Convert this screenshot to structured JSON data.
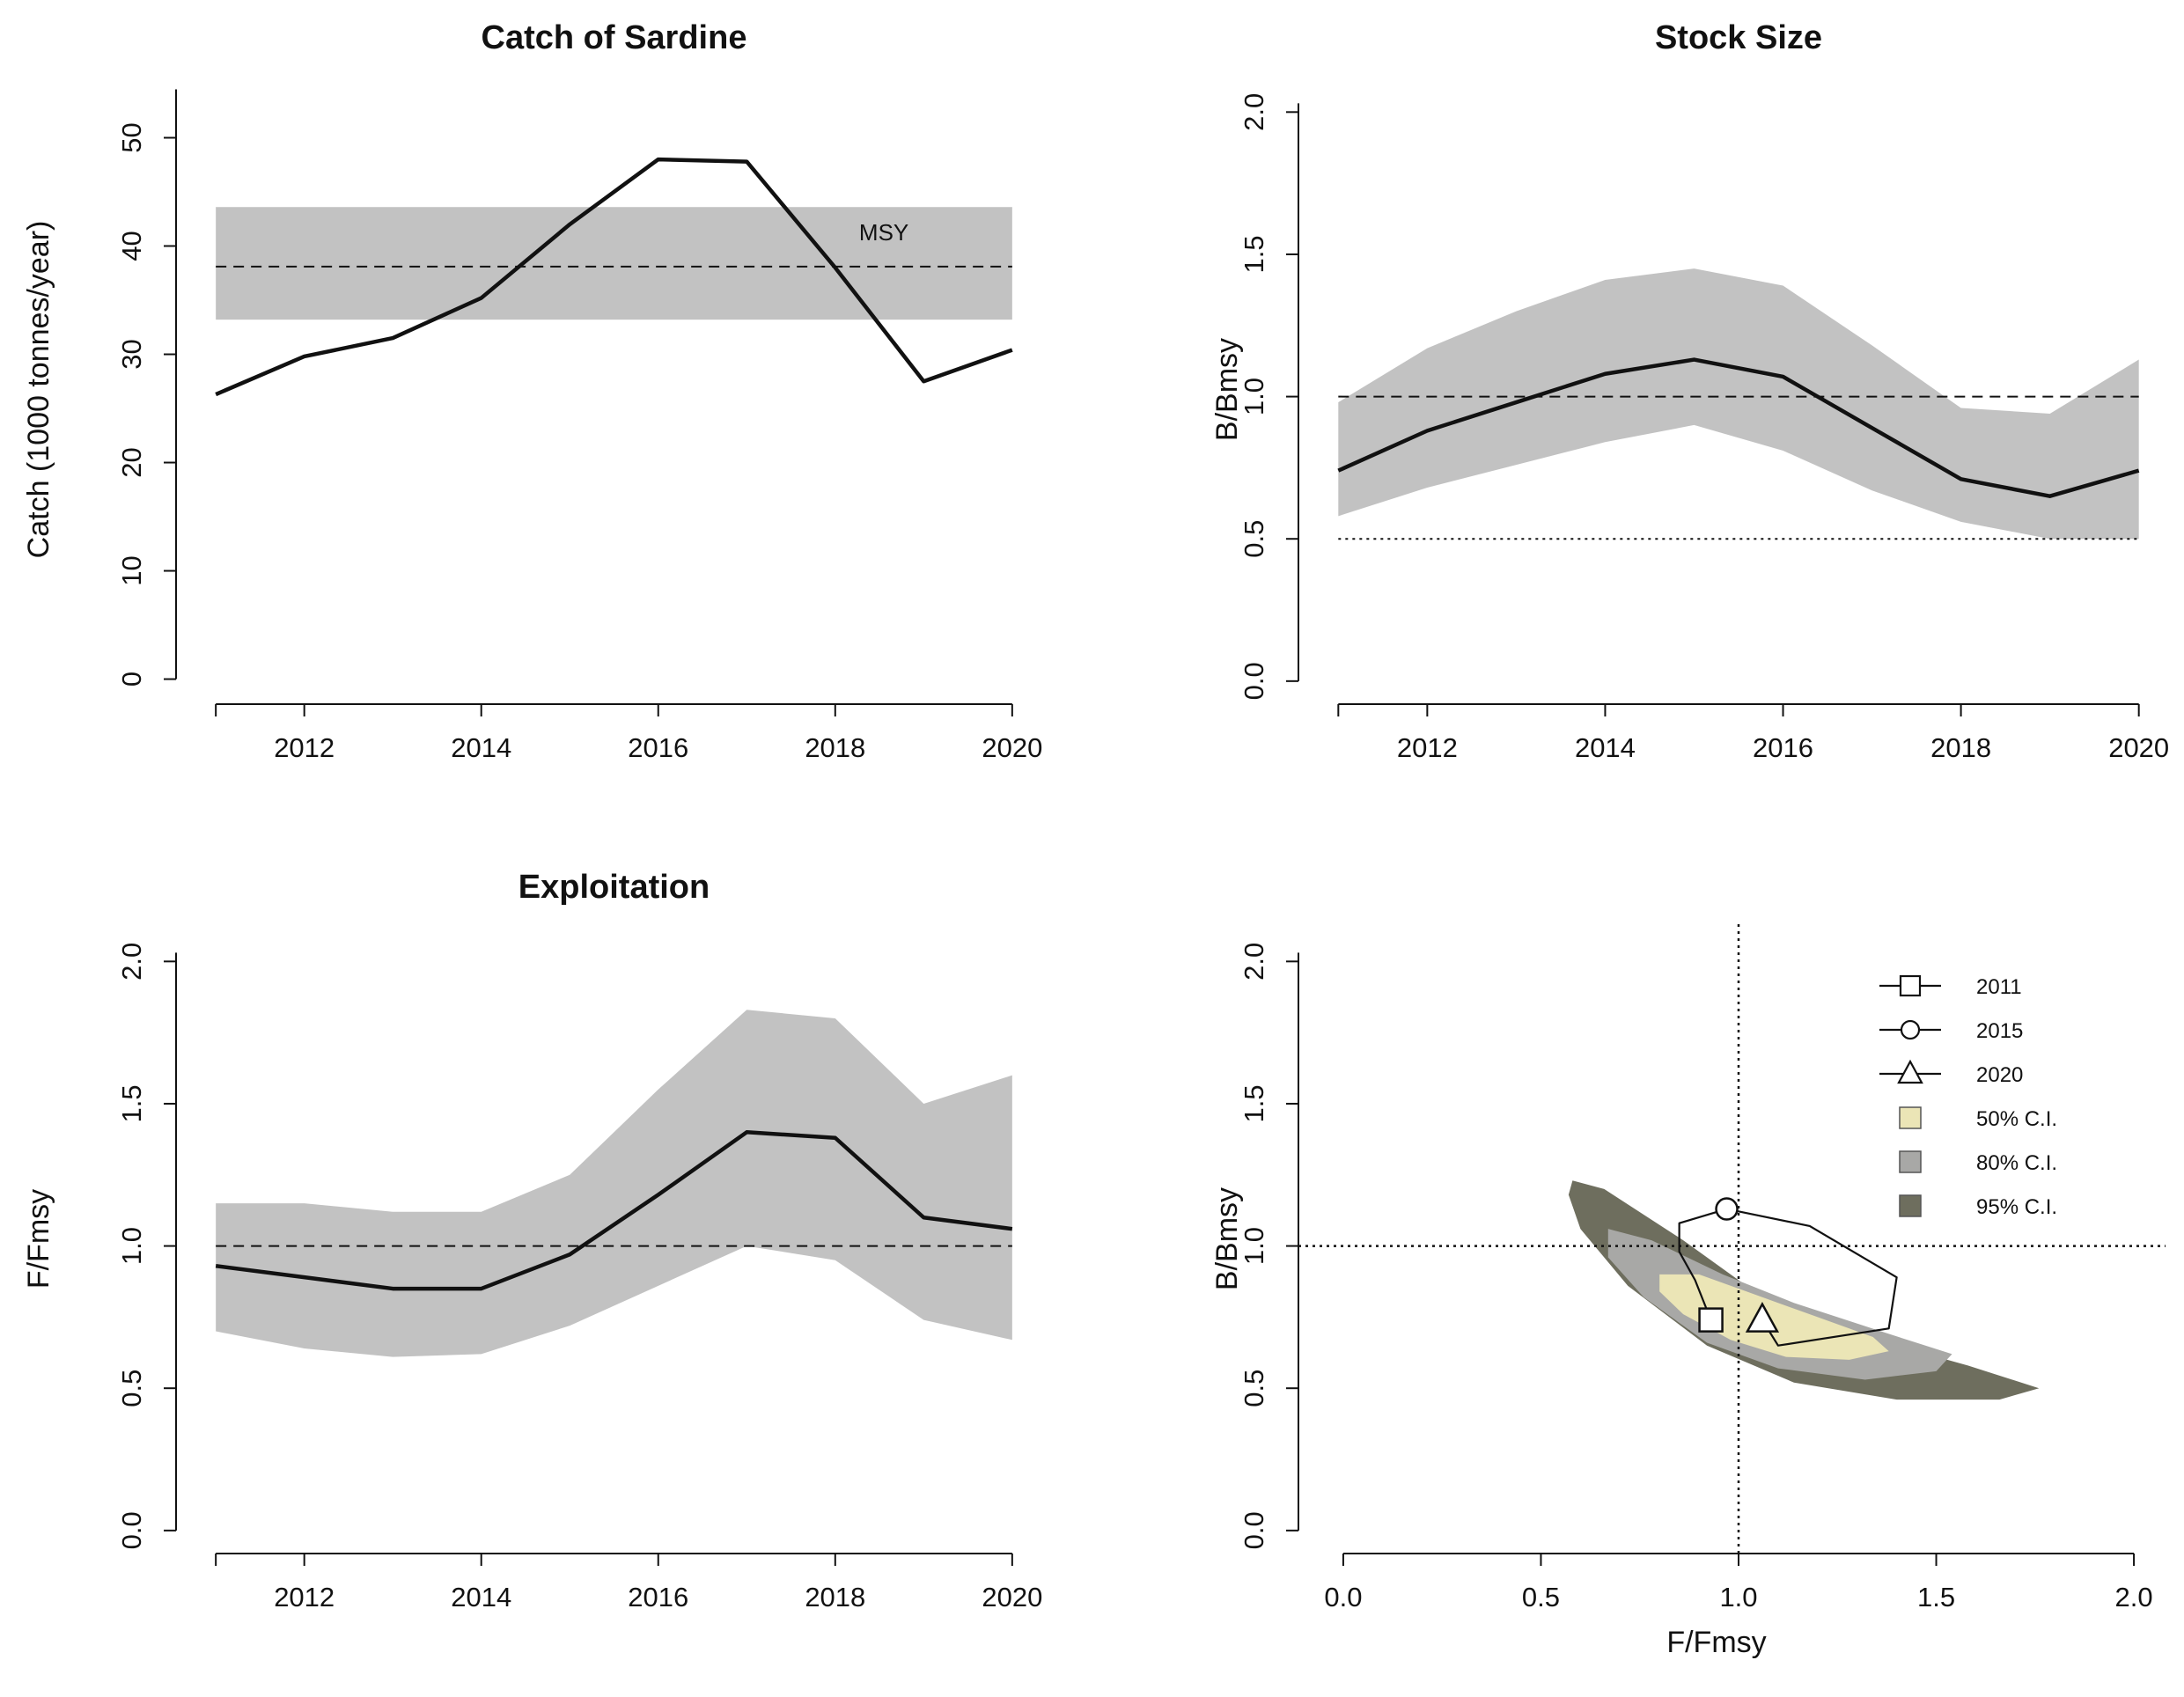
{
  "chart_data": [
    {
      "id": "catch",
      "type": "line",
      "title": "Catch of Sardine",
      "xlabel": "",
      "ylabel": "Catch (1000 tonnes/year)",
      "xlim": [
        2010.7,
        2020.3
      ],
      "ylim": [
        -1.5,
        55
      ],
      "xticks": [
        2012,
        2014,
        2016,
        2018,
        2020
      ],
      "yticks": [
        0,
        10,
        20,
        30,
        40,
        50
      ],
      "x": [
        2011,
        2012,
        2013,
        2014,
        2015,
        2016,
        2017,
        2018,
        2019,
        2020
      ],
      "series": [
        {
          "name": "Catch",
          "values": [
            26.3,
            29.8,
            31.5,
            35.2,
            42,
            48,
            47.8,
            38,
            27.5,
            30.4
          ]
        }
      ],
      "reference": {
        "name": "MSY",
        "value": 38.1,
        "band": [
          33.2,
          43.6
        ],
        "label": "MSY"
      },
      "grid": false
    },
    {
      "id": "stock",
      "type": "area",
      "title": "Stock Size",
      "xlabel": "",
      "ylabel": "B/Bmsy",
      "xlim": [
        2010.7,
        2020.3
      ],
      "ylim": [
        -0.05,
        2.1
      ],
      "xticks": [
        2012,
        2014,
        2016,
        2018,
        2020
      ],
      "yticks": [
        0.0,
        0.5,
        1.0,
        1.5,
        2.0
      ],
      "ytick_labels": [
        "0.0",
        "0.5",
        "1.0",
        "1.5",
        "2.0"
      ],
      "x": [
        2011,
        2012,
        2013,
        2014,
        2015,
        2016,
        2017,
        2018,
        2019,
        2020
      ],
      "series": [
        {
          "name": "B/Bmsy",
          "values": [
            0.74,
            0.88,
            0.98,
            1.08,
            1.13,
            1.07,
            0.89,
            0.71,
            0.65,
            0.74
          ]
        },
        {
          "name": "upper",
          "values": [
            0.98,
            1.17,
            1.3,
            1.41,
            1.45,
            1.39,
            1.18,
            0.96,
            0.94,
            1.13
          ]
        },
        {
          "name": "lower",
          "values": [
            0.58,
            0.68,
            0.76,
            0.84,
            0.9,
            0.81,
            0.67,
            0.56,
            0.5,
            0.5
          ]
        }
      ],
      "reference_lines": [
        {
          "value": 1.0,
          "style": "dashed"
        },
        {
          "value": 0.5,
          "style": "dotted"
        }
      ],
      "grid": false
    },
    {
      "id": "exploit",
      "type": "area",
      "title": "Exploitation",
      "xlabel": "",
      "ylabel": "F/Fmsy",
      "xlim": [
        2010.7,
        2020.3
      ],
      "ylim": [
        -0.05,
        2.1
      ],
      "xticks": [
        2012,
        2014,
        2016,
        2018,
        2020
      ],
      "yticks": [
        0.0,
        0.5,
        1.0,
        1.5,
        2.0
      ],
      "ytick_labels": [
        "0.0",
        "0.5",
        "1.0",
        "1.5",
        "2.0"
      ],
      "x": [
        2011,
        2012,
        2013,
        2014,
        2015,
        2016,
        2017,
        2018,
        2019,
        2020
      ],
      "series": [
        {
          "name": "F/Fmsy",
          "values": [
            0.93,
            0.89,
            0.85,
            0.85,
            0.97,
            1.18,
            1.4,
            1.38,
            1.1,
            1.06
          ]
        },
        {
          "name": "upper",
          "values": [
            1.15,
            1.15,
            1.12,
            1.12,
            1.25,
            1.55,
            1.83,
            1.8,
            1.5,
            1.6
          ]
        },
        {
          "name": "lower",
          "values": [
            0.7,
            0.64,
            0.61,
            0.62,
            0.72,
            0.86,
            1.0,
            0.95,
            0.74,
            0.67
          ]
        }
      ],
      "reference_lines": [
        {
          "value": 1.0,
          "style": "dashed"
        }
      ],
      "grid": false
    },
    {
      "id": "kobe",
      "type": "scatter",
      "title": "",
      "xlabel": "F/Fmsy",
      "ylabel": "B/Bmsy",
      "xlim": [
        -0.08,
        2.08
      ],
      "ylim": [
        -0.05,
        2.1
      ],
      "xticks": [
        0.0,
        0.5,
        1.0,
        1.5,
        2.0
      ],
      "xtick_labels": [
        "0.0",
        "0.5",
        "1.0",
        "1.5",
        "2.0"
      ],
      "yticks": [
        0.0,
        0.5,
        1.0,
        1.5,
        2.0
      ],
      "ytick_labels": [
        "0.0",
        "0.5",
        "1.0",
        "1.5",
        "2.0"
      ],
      "trajectory": {
        "x": [
          0.93,
          0.89,
          0.85,
          0.85,
          0.97,
          1.18,
          1.4,
          1.38,
          1.1,
          1.06
        ],
        "y": [
          0.74,
          0.88,
          0.98,
          1.08,
          1.13,
          1.07,
          0.89,
          0.71,
          0.65,
          0.74
        ]
      },
      "points": [
        {
          "label": "2011",
          "marker": "square",
          "x": 0.93,
          "y": 0.74
        },
        {
          "label": "2015",
          "marker": "circle",
          "x": 0.97,
          "y": 1.13
        },
        {
          "label": "2020",
          "marker": "triangle",
          "x": 1.06,
          "y": 0.74
        }
      ],
      "regions": [
        {
          "label": "95% C.I.",
          "color": "#6e6e5e",
          "polygon": [
            [
              0.58,
              1.23
            ],
            [
              0.66,
              1.2
            ],
            [
              0.86,
              1.02
            ],
            [
              1.06,
              0.82
            ],
            [
              1.32,
              0.68
            ],
            [
              1.58,
              0.58
            ],
            [
              1.76,
              0.5
            ],
            [
              1.66,
              0.46
            ],
            [
              1.4,
              0.46
            ],
            [
              1.14,
              0.52
            ],
            [
              0.92,
              0.65
            ],
            [
              0.72,
              0.86
            ],
            [
              0.6,
              1.06
            ],
            [
              0.57,
              1.18
            ]
          ]
        },
        {
          "label": "80% C.I.",
          "color": "#a8a8a6",
          "polygon": [
            [
              0.67,
              1.06
            ],
            [
              0.78,
              1.02
            ],
            [
              0.96,
              0.9
            ],
            [
              1.14,
              0.8
            ],
            [
              1.36,
              0.7
            ],
            [
              1.54,
              0.62
            ],
            [
              1.5,
              0.56
            ],
            [
              1.32,
              0.53
            ],
            [
              1.1,
              0.57
            ],
            [
              0.92,
              0.66
            ],
            [
              0.76,
              0.82
            ],
            [
              0.67,
              0.96
            ]
          ]
        },
        {
          "label": "50% C.I.",
          "color": "#ebe5b6",
          "polygon": [
            [
              0.8,
              0.9
            ],
            [
              0.9,
              0.9
            ],
            [
              1.02,
              0.84
            ],
            [
              1.18,
              0.76
            ],
            [
              1.34,
              0.68
            ],
            [
              1.38,
              0.63
            ],
            [
              1.28,
              0.6
            ],
            [
              1.12,
              0.61
            ],
            [
              0.98,
              0.67
            ],
            [
              0.86,
              0.76
            ],
            [
              0.8,
              0.84
            ]
          ]
        }
      ],
      "reference_lines": [
        {
          "axis": "x",
          "value": 1.0,
          "style": "dotted"
        },
        {
          "axis": "y",
          "value": 1.0,
          "style": "dotted"
        }
      ],
      "legend": {
        "position": "top-right",
        "entries": [
          {
            "label": "2011",
            "kind": "line-square"
          },
          {
            "label": "2015",
            "kind": "line-circle"
          },
          {
            "label": "2020",
            "kind": "line-triangle"
          },
          {
            "label": "50% C.I.",
            "kind": "box",
            "color": "#ebe5b6"
          },
          {
            "label": "80% C.I.",
            "kind": "box",
            "color": "#a8a8a6"
          },
          {
            "label": "95% C.I.",
            "kind": "box",
            "color": "#6e6e5e"
          }
        ]
      },
      "grid": false
    }
  ],
  "colors": {
    "band": "#c2c2c2",
    "line": "#111111"
  }
}
